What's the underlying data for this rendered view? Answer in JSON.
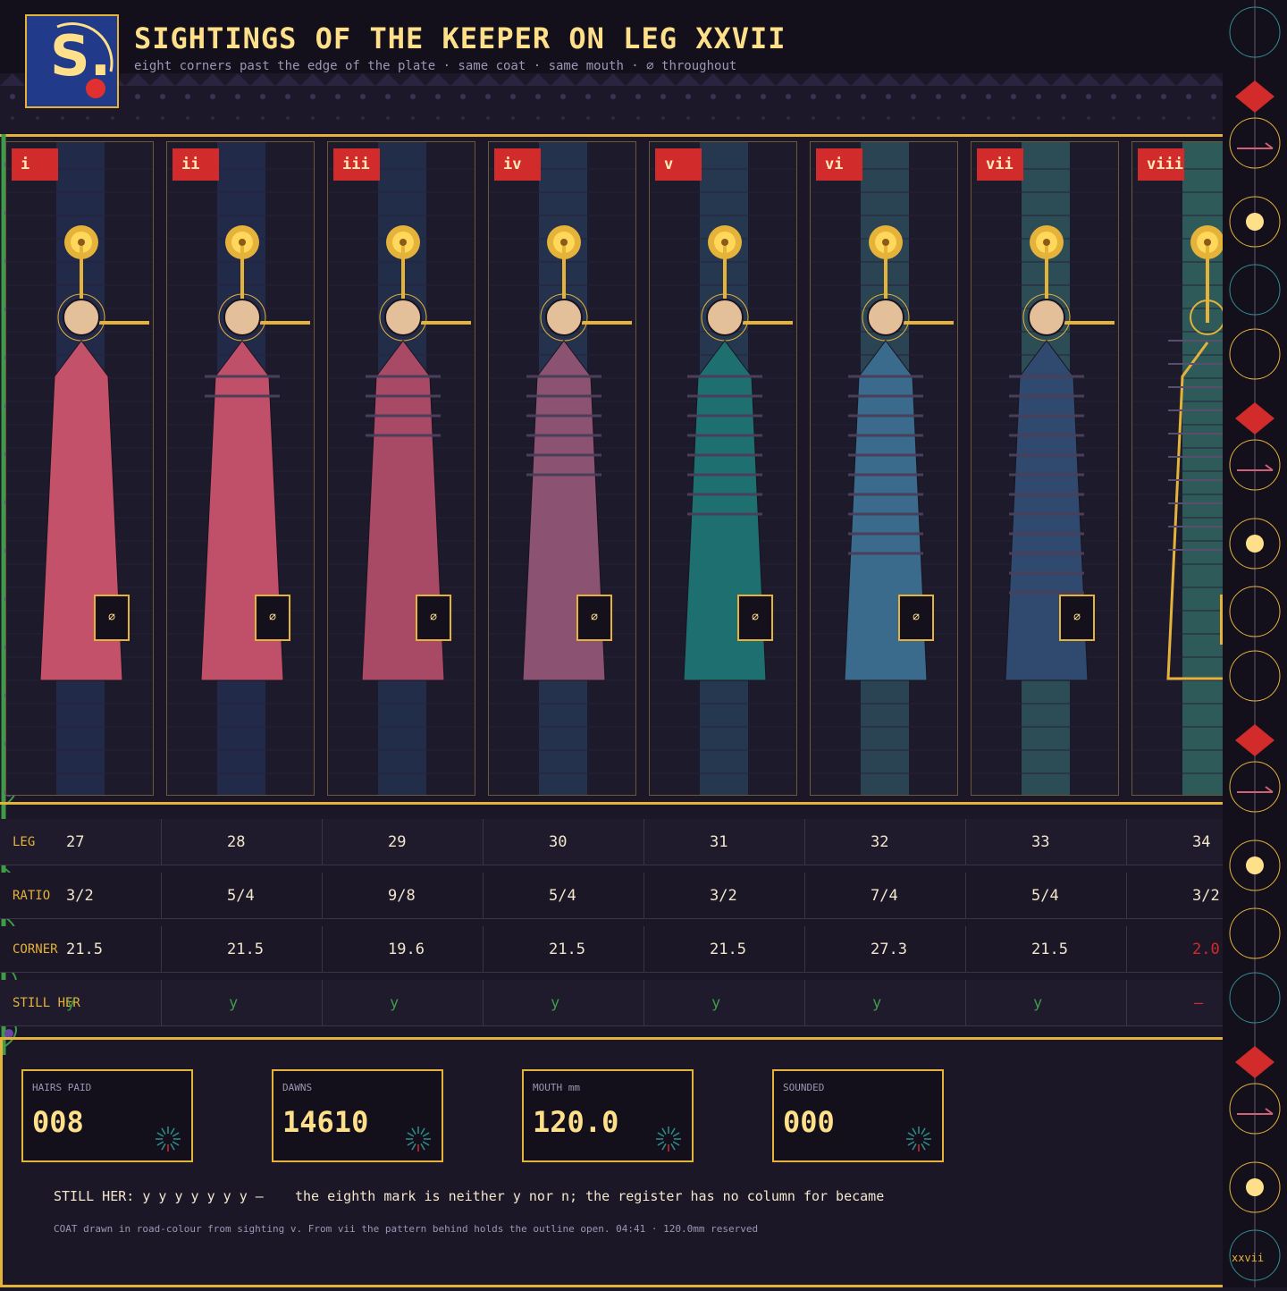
{
  "header": {
    "logo_letter": "S.",
    "title": "SIGHTINGS OF THE KEEPER ON LEG XXVII",
    "subtitle": "eight corners past the edge of the plate  ·  same coat  ·  same mouth  ·  ⌀ throughout"
  },
  "colors": {
    "gold": "#e5b23a",
    "red_tag": "#d22b2b",
    "green_yes": "#3f9a4a",
    "background": "#1b1727"
  },
  "sightings": [
    {
      "tag": "i",
      "coat": "#c3516a",
      "band": "#222a4a",
      "stripes": 0,
      "mark": "⌀"
    },
    {
      "tag": "ii",
      "coat": "#c0506a",
      "band": "#222a4a",
      "stripes": 2,
      "mark": "⌀"
    },
    {
      "tag": "iii",
      "coat": "#a84a66",
      "band": "#222d4a",
      "stripes": 4,
      "mark": "⌀"
    },
    {
      "tag": "iv",
      "coat": "#8c5272",
      "band": "#24324d",
      "stripes": 6,
      "mark": "⌀"
    },
    {
      "tag": "v",
      "coat": "#1e7070",
      "band": "#26384f",
      "stripes": 8,
      "mark": "⌀"
    },
    {
      "tag": "vi",
      "coat": "#3a6a8c",
      "band": "#2a4454",
      "stripes": 10,
      "mark": "⌀"
    },
    {
      "tag": "vii",
      "coat": "#2f4a6e",
      "band": "#2c4c56",
      "stripes": 12,
      "mark": "⌀"
    },
    {
      "tag": "viii",
      "coat": "none",
      "band": "#2e5a5a",
      "stripes": 10,
      "mark": ""
    }
  ],
  "table": {
    "labels": [
      "LEG",
      "RATIO",
      "CORNER",
      "STILL HER"
    ],
    "leg": [
      "27",
      "28",
      "29",
      "30",
      "31",
      "32",
      "33",
      "34"
    ],
    "ratio": [
      "3/2",
      "5/4",
      "9/8",
      "5/4",
      "3/2",
      "7/4",
      "5/4",
      "3/2"
    ],
    "corner": [
      "21.5",
      "21.5",
      "19.6",
      "21.5",
      "21.5",
      "27.3",
      "21.5",
      "2.0"
    ],
    "still_her": [
      "y",
      "y",
      "y",
      "y",
      "y",
      "y",
      "y",
      "—"
    ]
  },
  "counters": [
    {
      "label": "HAIRS PAID",
      "value": "008"
    },
    {
      "label": "DAWNS",
      "value": "14610"
    },
    {
      "label": "MOUTH mm",
      "value": "120.0"
    },
    {
      "label": "SOUNDED",
      "value": "000"
    }
  ],
  "footer": {
    "still_her_line": "STILL HER: y y y y y y y —",
    "register_note": "the eighth mark is neither y nor n; the register has no column for became",
    "footnote": "COAT drawn in road-colour from sighting v.  From vii the pattern behind holds the outline open.  04:41 · 120.0mm reserved"
  },
  "rail": {
    "label": "xxvii",
    "glyphs": [
      "teal-ring",
      "red-diamond",
      "arrow",
      "sun",
      "teal-ring",
      "gold-ring",
      "red-diamond",
      "arrow",
      "sun",
      "gold-ring",
      "gold-ring",
      "red-diamond",
      "arrow",
      "sun",
      "gold-ring",
      "teal-ring",
      "red-diamond",
      "arrow",
      "sun",
      "teal-ring"
    ]
  }
}
